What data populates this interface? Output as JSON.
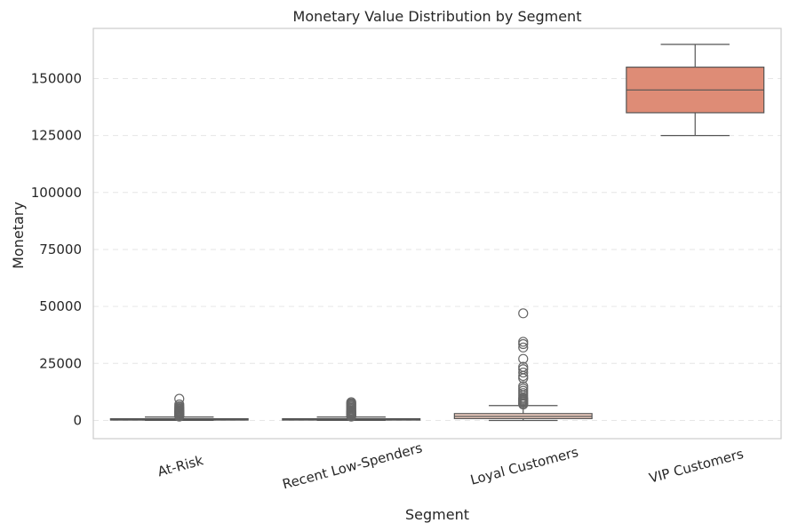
{
  "chart_data": {
    "type": "box",
    "title": "Monetary Value Distribution by Segment",
    "xlabel": "Segment",
    "ylabel": "Monetary",
    "ylim": [
      -8000,
      172000
    ],
    "yticks": [
      0,
      25000,
      50000,
      75000,
      100000,
      125000,
      150000
    ],
    "ytick_labels": [
      "0",
      "25000",
      "50000",
      "75000",
      "100000",
      "125000",
      "150000"
    ],
    "grid": "y-dashed",
    "categories": [
      "At-Risk",
      "Recent Low-Spenders",
      "Loyal Customers",
      "VIP Customers"
    ],
    "boxes": [
      {
        "name": "At-Risk",
        "whislo": 50,
        "q1": 150,
        "med": 350,
        "q3": 750,
        "whishi": 1500,
        "color": "#ffffff",
        "fliers": [
          1700,
          1900,
          2100,
          2300,
          2500,
          2700,
          2900,
          3100,
          3300,
          3500,
          3700,
          3900,
          4100,
          4400,
          4800,
          5200,
          5700,
          6200,
          7000,
          9500
        ]
      },
      {
        "name": "Recent Low-Spenders",
        "whislo": 50,
        "q1": 150,
        "med": 400,
        "q3": 750,
        "whishi": 1500,
        "color": "#ffffff",
        "fliers": [
          1700,
          1900,
          2100,
          2300,
          2500,
          2700,
          2900,
          3100,
          3300,
          3500,
          3800,
          4100,
          4500,
          5000,
          5500,
          6000,
          6500,
          7000,
          7500,
          8000
        ]
      },
      {
        "name": "Loyal Customers",
        "whislo": 0,
        "q1": 800,
        "med": 1800,
        "q3": 3000,
        "whishi": 6500,
        "color": "#f4d1c4",
        "fliers": [
          7000,
          7500,
          8000,
          8500,
          9000,
          9500,
          10000,
          11000,
          12000,
          13000,
          14000,
          15000,
          18500,
          19500,
          21000,
          22500,
          23500,
          27000,
          32000,
          33500,
          34500,
          47000
        ]
      },
      {
        "name": "VIP Customers",
        "whislo": 125000,
        "q1": 135000,
        "med": 145000,
        "q3": 155000,
        "whishi": 165000,
        "color": "#de8c76",
        "fliers": []
      }
    ]
  }
}
